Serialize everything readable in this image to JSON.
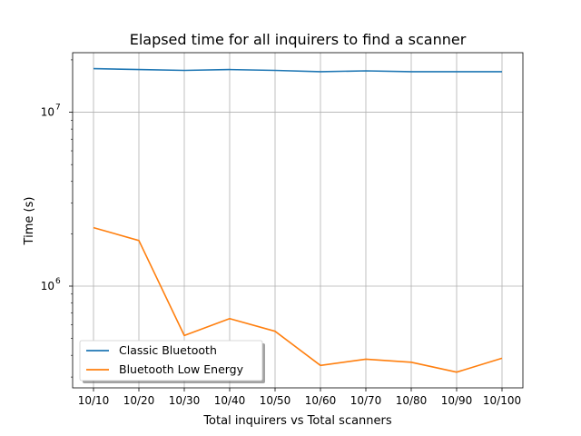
{
  "chart_data": {
    "type": "line",
    "title": "Elapsed time for all inquirers to find a scanner",
    "xlabel": "Total inquirers vs Total scanners",
    "ylabel": "Time (s)",
    "categories": [
      "10/10",
      "10/20",
      "10/30",
      "10/40",
      "10/50",
      "10/60",
      "10/70",
      "10/80",
      "10/90",
      "10/100"
    ],
    "yscale": "log",
    "ylim": [
      260000,
      22000000
    ],
    "yticks": [
      {
        "value": 1000000,
        "base": "10",
        "exp": "6"
      },
      {
        "value": 10000000,
        "base": "10",
        "exp": "7"
      }
    ],
    "grid": true,
    "legend_position": "lower-left",
    "series": [
      {
        "name": "Classic Bluetooth",
        "color": "#1f77b4",
        "values": [
          17800000,
          17600000,
          17400000,
          17600000,
          17400000,
          17100000,
          17300000,
          17100000,
          17100000,
          17100000
        ]
      },
      {
        "name": "Bluetooth Low Energy",
        "color": "#ff7f0e",
        "values": [
          2170000,
          1830000,
          520000,
          650000,
          550000,
          350000,
          380000,
          365000,
          320000,
          385000
        ]
      }
    ]
  }
}
